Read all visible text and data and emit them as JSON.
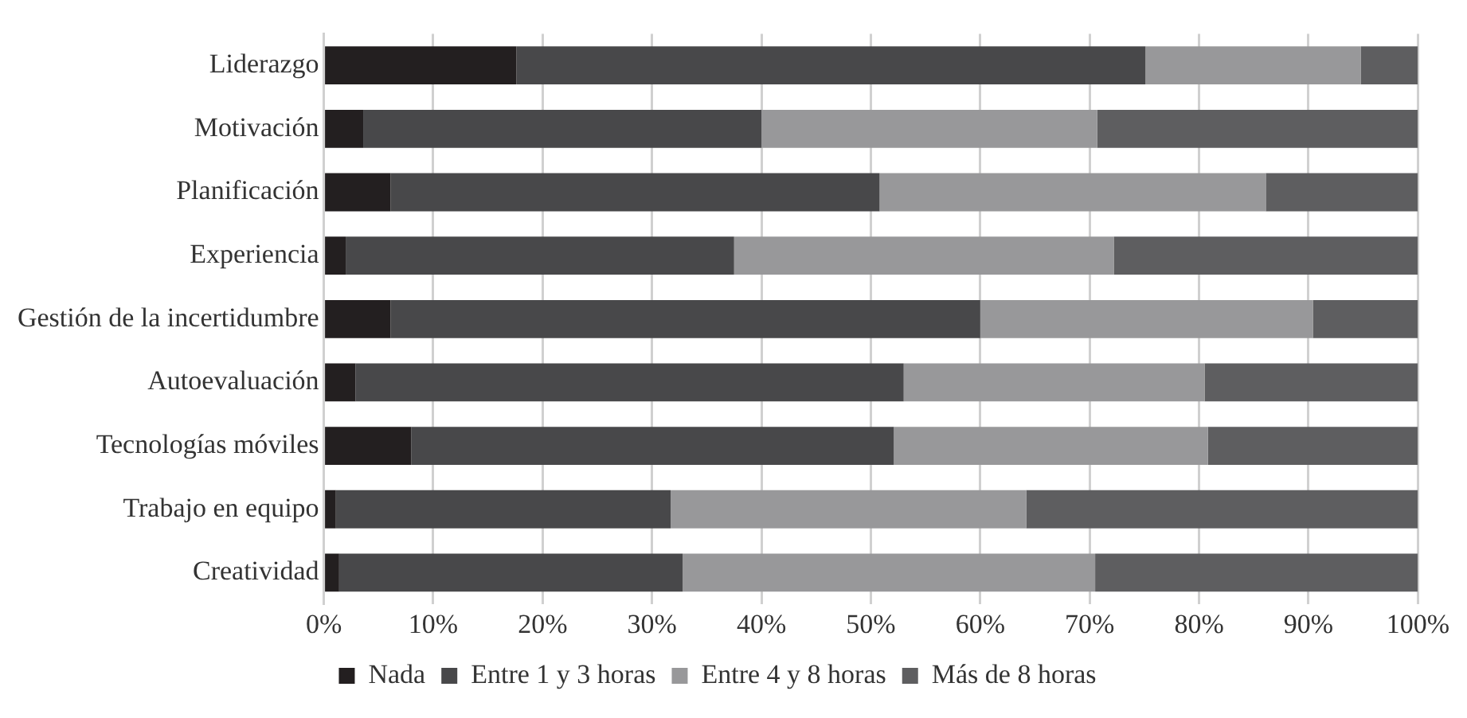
{
  "chart_data": {
    "type": "bar",
    "orientation": "horizontal",
    "stacked": true,
    "categories": [
      "Liderazgo",
      "Motivación",
      "Planificación",
      "Experiencia",
      "Gestión de la incertidumbre",
      "Autoevaluación",
      "Tecnologías móviles",
      "Trabajo en equipo",
      "Creatividad"
    ],
    "series": [
      {
        "name": "Nada",
        "color": "#231f20",
        "values": [
          17.6,
          3.6,
          6.1,
          2.0,
          6.1,
          2.9,
          8.0,
          1.1,
          1.4
        ]
      },
      {
        "name": "Entre 1 y 3 horas",
        "color": "#48484a",
        "values": [
          57.5,
          36.4,
          44.7,
          35.5,
          53.9,
          50.1,
          44.1,
          30.6,
          31.4
        ]
      },
      {
        "name": "Entre 4 y 8 horas",
        "color": "#98989a",
        "values": [
          19.7,
          30.7,
          35.3,
          34.7,
          30.4,
          27.5,
          28.7,
          32.5,
          37.7
        ]
      },
      {
        "name": "Más de 8 horas",
        "color": "#5e5e60",
        "values": [
          5.2,
          29.3,
          13.9,
          27.8,
          9.6,
          19.5,
          19.2,
          35.8,
          29.5
        ]
      }
    ],
    "xlim": [
      0,
      100
    ],
    "xticks": [
      {
        "value": 0,
        "label": "0%"
      },
      {
        "value": 10,
        "label": "10%"
      },
      {
        "value": 20,
        "label": "20%"
      },
      {
        "value": 30,
        "label": "30%"
      },
      {
        "value": 40,
        "label": "40%"
      },
      {
        "value": 50,
        "label": "50%"
      },
      {
        "value": 60,
        "label": "60%"
      },
      {
        "value": 70,
        "label": "70%"
      },
      {
        "value": 80,
        "label": "80%"
      },
      {
        "value": 90,
        "label": "90%"
      },
      {
        "value": 100,
        "label": "100%"
      }
    ],
    "grid": "x",
    "legend": "bottom"
  }
}
